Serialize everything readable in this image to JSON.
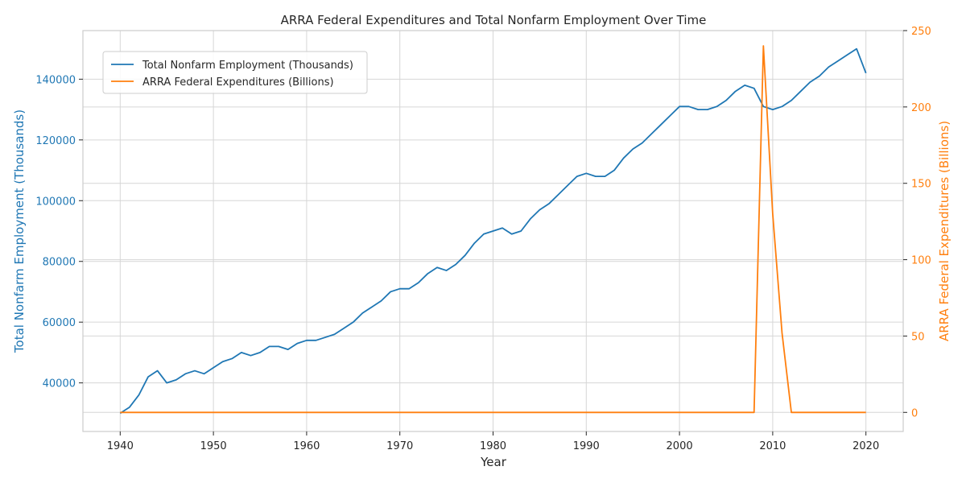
{
  "chart_data": {
    "type": "line",
    "title": "ARRA Federal Expenditures and Total Nonfarm Employment Over Time",
    "xlabel": "Year",
    "ylabel_left": "Total Nonfarm Employment (Thousands)",
    "ylabel_right": "ARRA Federal Expenditures (Billions)",
    "xlim": [
      1936,
      2024
    ],
    "ylim_left": [
      24000,
      156000
    ],
    "ylim_right": [
      -12.5,
      250
    ],
    "x_ticks": [
      1940,
      1950,
      1960,
      1970,
      1980,
      1990,
      2000,
      2010,
      2020
    ],
    "y_left_ticks": [
      40000,
      60000,
      80000,
      100000,
      120000,
      140000
    ],
    "y_right_ticks": [
      0,
      50,
      100,
      150,
      200,
      250
    ],
    "grid": true,
    "legend_position": "top-left",
    "colors": {
      "employment": "#1f77b4",
      "arra": "#ff7f0e",
      "grid": "#d6d6d6",
      "spine": "#cccccc",
      "text": "#262626"
    },
    "series": [
      {
        "name": "Total Nonfarm Employment (Thousands)",
        "axis": "left",
        "color": "#1f77b4",
        "x": [
          1940,
          1941,
          1942,
          1943,
          1944,
          1945,
          1946,
          1947,
          1948,
          1949,
          1950,
          1951,
          1952,
          1953,
          1954,
          1955,
          1956,
          1957,
          1958,
          1959,
          1960,
          1961,
          1962,
          1963,
          1964,
          1965,
          1966,
          1967,
          1968,
          1969,
          1970,
          1971,
          1972,
          1973,
          1974,
          1975,
          1976,
          1977,
          1978,
          1979,
          1980,
          1981,
          1982,
          1983,
          1984,
          1985,
          1986,
          1987,
          1988,
          1989,
          1990,
          1991,
          1992,
          1993,
          1994,
          1995,
          1996,
          1997,
          1998,
          1999,
          2000,
          2001,
          2002,
          2003,
          2004,
          2005,
          2006,
          2007,
          2008,
          2009,
          2010,
          2011,
          2012,
          2013,
          2014,
          2015,
          2016,
          2017,
          2018,
          2019,
          2020
        ],
        "values": [
          30000,
          32000,
          36000,
          42000,
          44000,
          40000,
          41000,
          43000,
          44000,
          43000,
          45000,
          47000,
          48000,
          50000,
          49000,
          50000,
          52000,
          52000,
          51000,
          53000,
          54000,
          54000,
          55000,
          56000,
          58000,
          60000,
          63000,
          65000,
          67000,
          70000,
          71000,
          71000,
          73000,
          76000,
          78000,
          77000,
          79000,
          82000,
          86000,
          89000,
          90000,
          91000,
          89000,
          90000,
          94000,
          97000,
          99000,
          102000,
          105000,
          108000,
          109000,
          108000,
          108000,
          110000,
          114000,
          117000,
          119000,
          122000,
          125000,
          128000,
          131000,
          131000,
          130000,
          130000,
          131000,
          133000,
          136000,
          138000,
          137000,
          131000,
          130000,
          131000,
          133000,
          136000,
          139000,
          141000,
          144000,
          146000,
          148000,
          150000,
          142000
        ]
      },
      {
        "name": "ARRA Federal Expenditures (Billions)",
        "axis": "right",
        "color": "#ff7f0e",
        "x": [
          1940,
          2008,
          2009,
          2010,
          2011,
          2012,
          2020
        ],
        "values": [
          0,
          0,
          240,
          130,
          52,
          0,
          0
        ]
      }
    ]
  }
}
